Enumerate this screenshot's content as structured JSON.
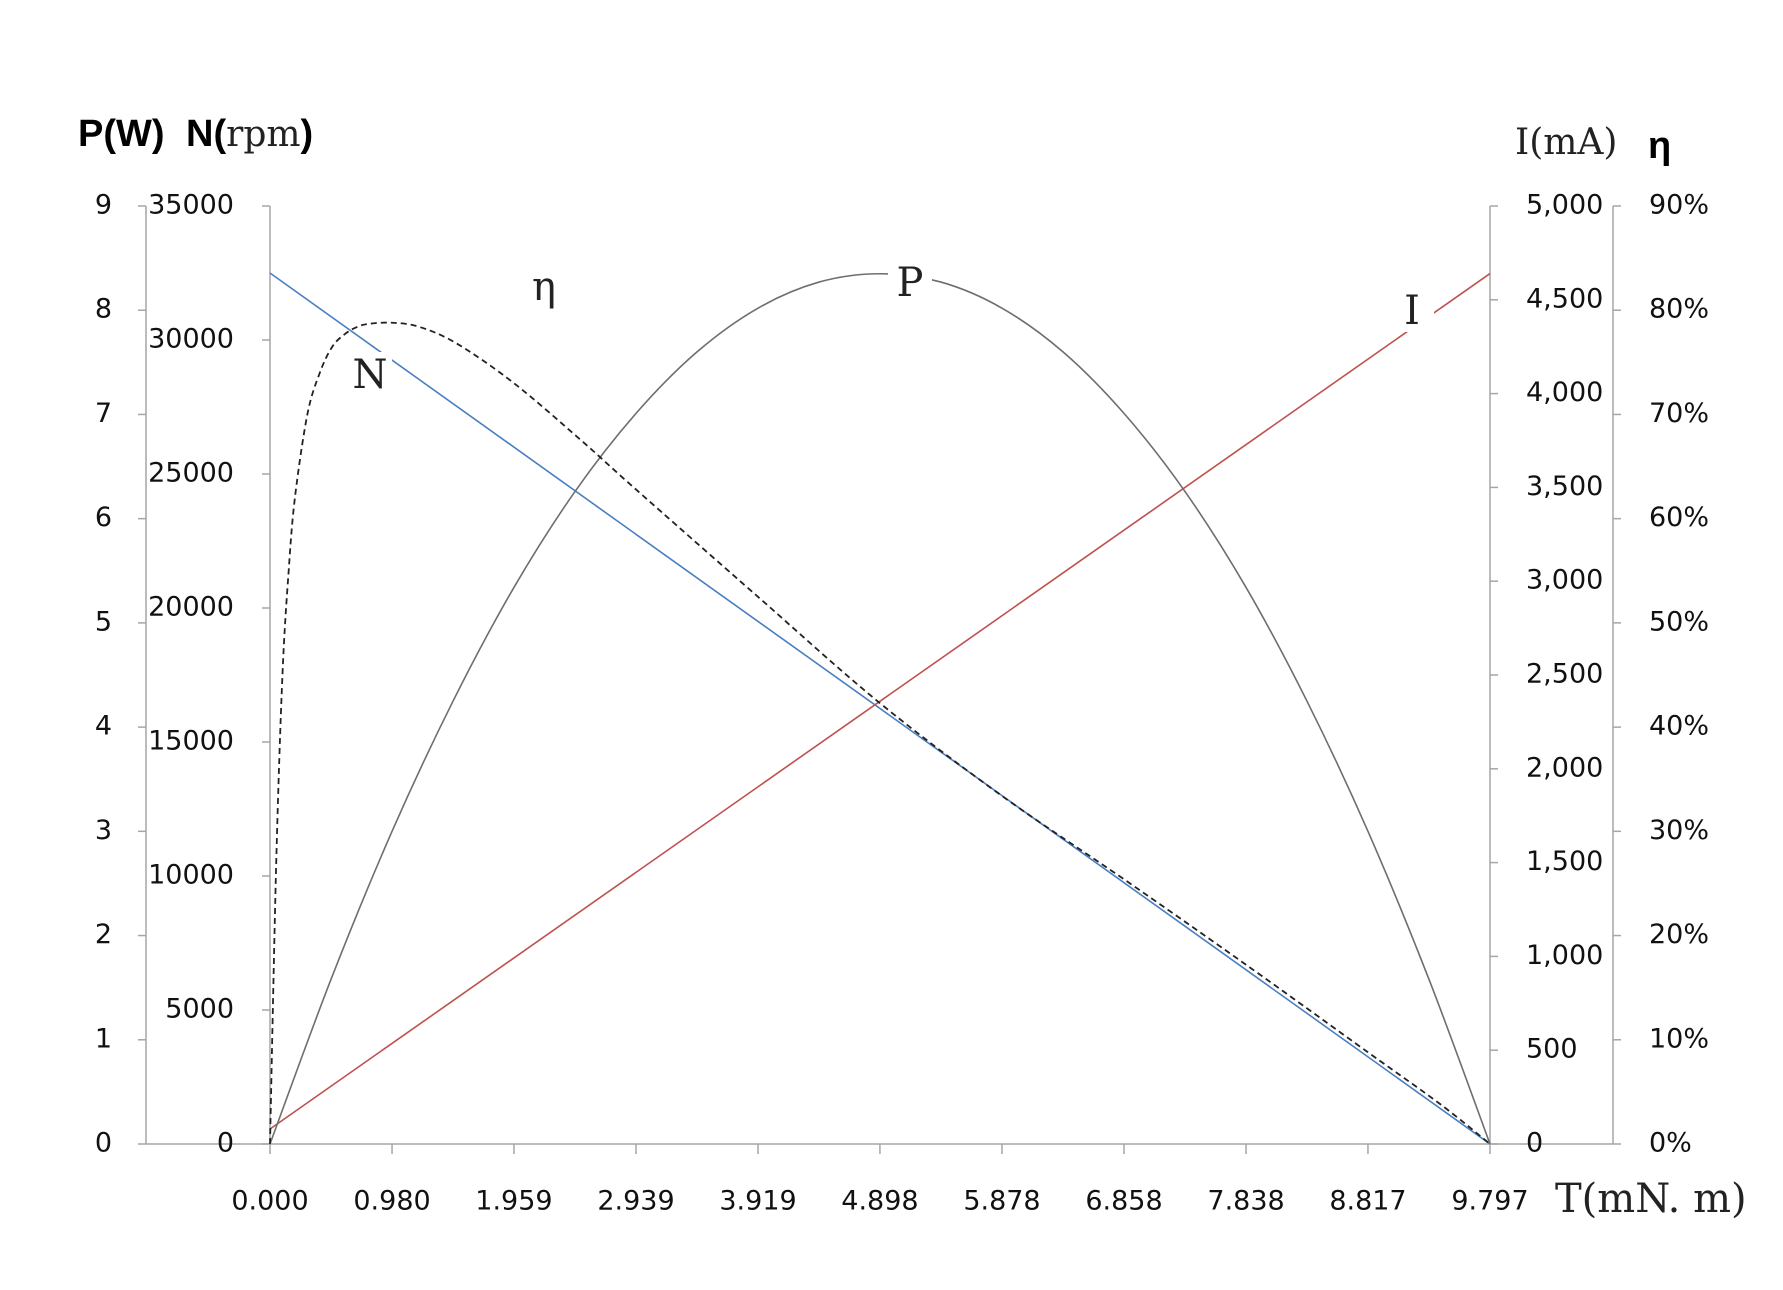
{
  "chart_data": {
    "type": "line",
    "x_axis": {
      "label": "T(mN. m)",
      "ticks": [
        "0.000",
        "0.980",
        "1.959",
        "2.939",
        "3.919",
        "4.898",
        "5.878",
        "6.858",
        "7.838",
        "8.817",
        "9.797"
      ],
      "range": [
        0,
        9.797
      ]
    },
    "y_axes": {
      "power": {
        "title": "P(W)",
        "range": [
          0,
          9
        ],
        "ticks": [
          "0",
          "1",
          "2",
          "3",
          "4",
          "5",
          "6",
          "7",
          "8",
          "9"
        ]
      },
      "speed": {
        "title_bold": "N(",
        "title_unit": "rpm",
        "title_close": ")",
        "range": [
          0,
          35000
        ],
        "ticks": [
          "0",
          "5000",
          "10000",
          "15000",
          "20000",
          "25000",
          "30000",
          "35000"
        ]
      },
      "current": {
        "title": "I(mA)",
        "range": [
          0,
          5000
        ],
        "ticks": [
          "0",
          "500",
          "1,000",
          "1,500",
          "2,000",
          "2,500",
          "3,000",
          "3,500",
          "4,000",
          "4,500",
          "5,000"
        ]
      },
      "efficiency": {
        "title": "η",
        "range": [
          0,
          90
        ],
        "ticks": [
          "0%",
          "10%",
          "20%",
          "30%",
          "40%",
          "50%",
          "60%",
          "70%",
          "80%",
          "90%"
        ]
      }
    },
    "series": [
      {
        "name": "N",
        "axis": "speed",
        "color": "#4a7fc1",
        "x": [
          0,
          9.797
        ],
        "y": [
          32500,
          0
        ]
      },
      {
        "name": "I",
        "axis": "current",
        "color": "#c0504d",
        "x": [
          0,
          9.797
        ],
        "y": [
          80,
          4640
        ]
      },
      {
        "name": "P",
        "axis": "power",
        "color": "#6e6e6e",
        "x": [
          0,
          0.49,
          0.98,
          1.47,
          1.959,
          2.449,
          2.939,
          3.429,
          3.919,
          4.409,
          4.898,
          5.388,
          5.878,
          6.368,
          6.858,
          7.348,
          7.838,
          8.327,
          8.817,
          9.307,
          9.797
        ],
        "y": [
          0,
          1.58,
          3.0,
          4.25,
          5.34,
          6.26,
          7.01,
          7.6,
          8.02,
          8.27,
          8.35,
          8.27,
          8.02,
          7.6,
          7.01,
          6.26,
          5.34,
          4.25,
          3.0,
          1.58,
          0
        ]
      },
      {
        "name": "η",
        "axis": "efficiency",
        "color": "#222222",
        "dashed": true,
        "x": [
          0,
          0.05,
          0.1,
          0.15,
          0.2,
          0.3,
          0.4,
          0.5,
          0.6,
          0.7,
          0.8,
          0.98,
          1.2,
          1.5,
          1.959,
          2.5,
          2.939,
          3.919,
          4.898,
          5.878,
          6.858,
          7.838,
          8.817,
          9.4,
          9.797
        ],
        "y": [
          0,
          27,
          45,
          55,
          62,
          70,
          74,
          76.5,
          77.7,
          78.4,
          78.7,
          78.8,
          78.4,
          76.8,
          73,
          67.5,
          62.8,
          52.5,
          42.3,
          33.4,
          25.4,
          17.2,
          8.8,
          3.8,
          0
        ]
      }
    ],
    "curve_labels": [
      "η",
      "N",
      "P",
      "I"
    ],
    "grid": false,
    "legend": "none"
  }
}
